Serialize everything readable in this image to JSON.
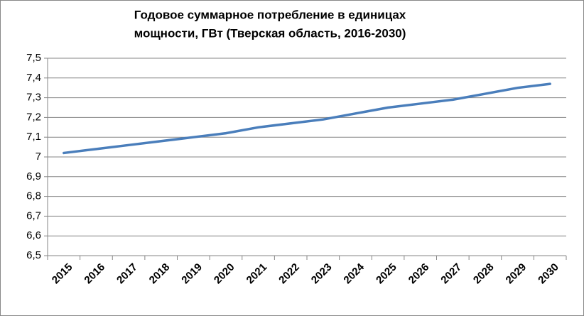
{
  "chart_data": {
    "type": "line",
    "title": [
      "Годовое суммарное потребление в  единицах",
      "мощности, ГВт (Тверская область, 2016-2030)"
    ],
    "categories": [
      "2015",
      "2016",
      "2017",
      "2018",
      "2019",
      "2020",
      "2021",
      "2022",
      "2023",
      "2024",
      "2025",
      "2026",
      "2027",
      "2028",
      "2029",
      "2030"
    ],
    "series": [
      {
        "color": "#4a7ebb",
        "values": [
          7.02,
          7.04,
          7.06,
          7.08,
          7.1,
          7.12,
          7.15,
          7.17,
          7.19,
          7.22,
          7.25,
          7.27,
          7.29,
          7.32,
          7.35,
          7.37
        ]
      }
    ],
    "ylim": [
      6.5,
      7.5
    ],
    "yticks": [
      {
        "value": 6.5,
        "label": "6,5"
      },
      {
        "value": 6.6,
        "label": "6,6"
      },
      {
        "value": 6.7,
        "label": "6,7"
      },
      {
        "value": 6.8,
        "label": "6,8"
      },
      {
        "value": 6.9,
        "label": "6,9"
      },
      7,
      {
        "value": 7.1,
        "label": "7,1"
      },
      {
        "value": 7.2,
        "label": "7,2"
      },
      {
        "value": 7.3,
        "label": "7,3"
      },
      {
        "value": 7.4,
        "label": "7,4"
      },
      {
        "value": 7.5,
        "label": "7,5"
      }
    ],
    "grid": true
  }
}
